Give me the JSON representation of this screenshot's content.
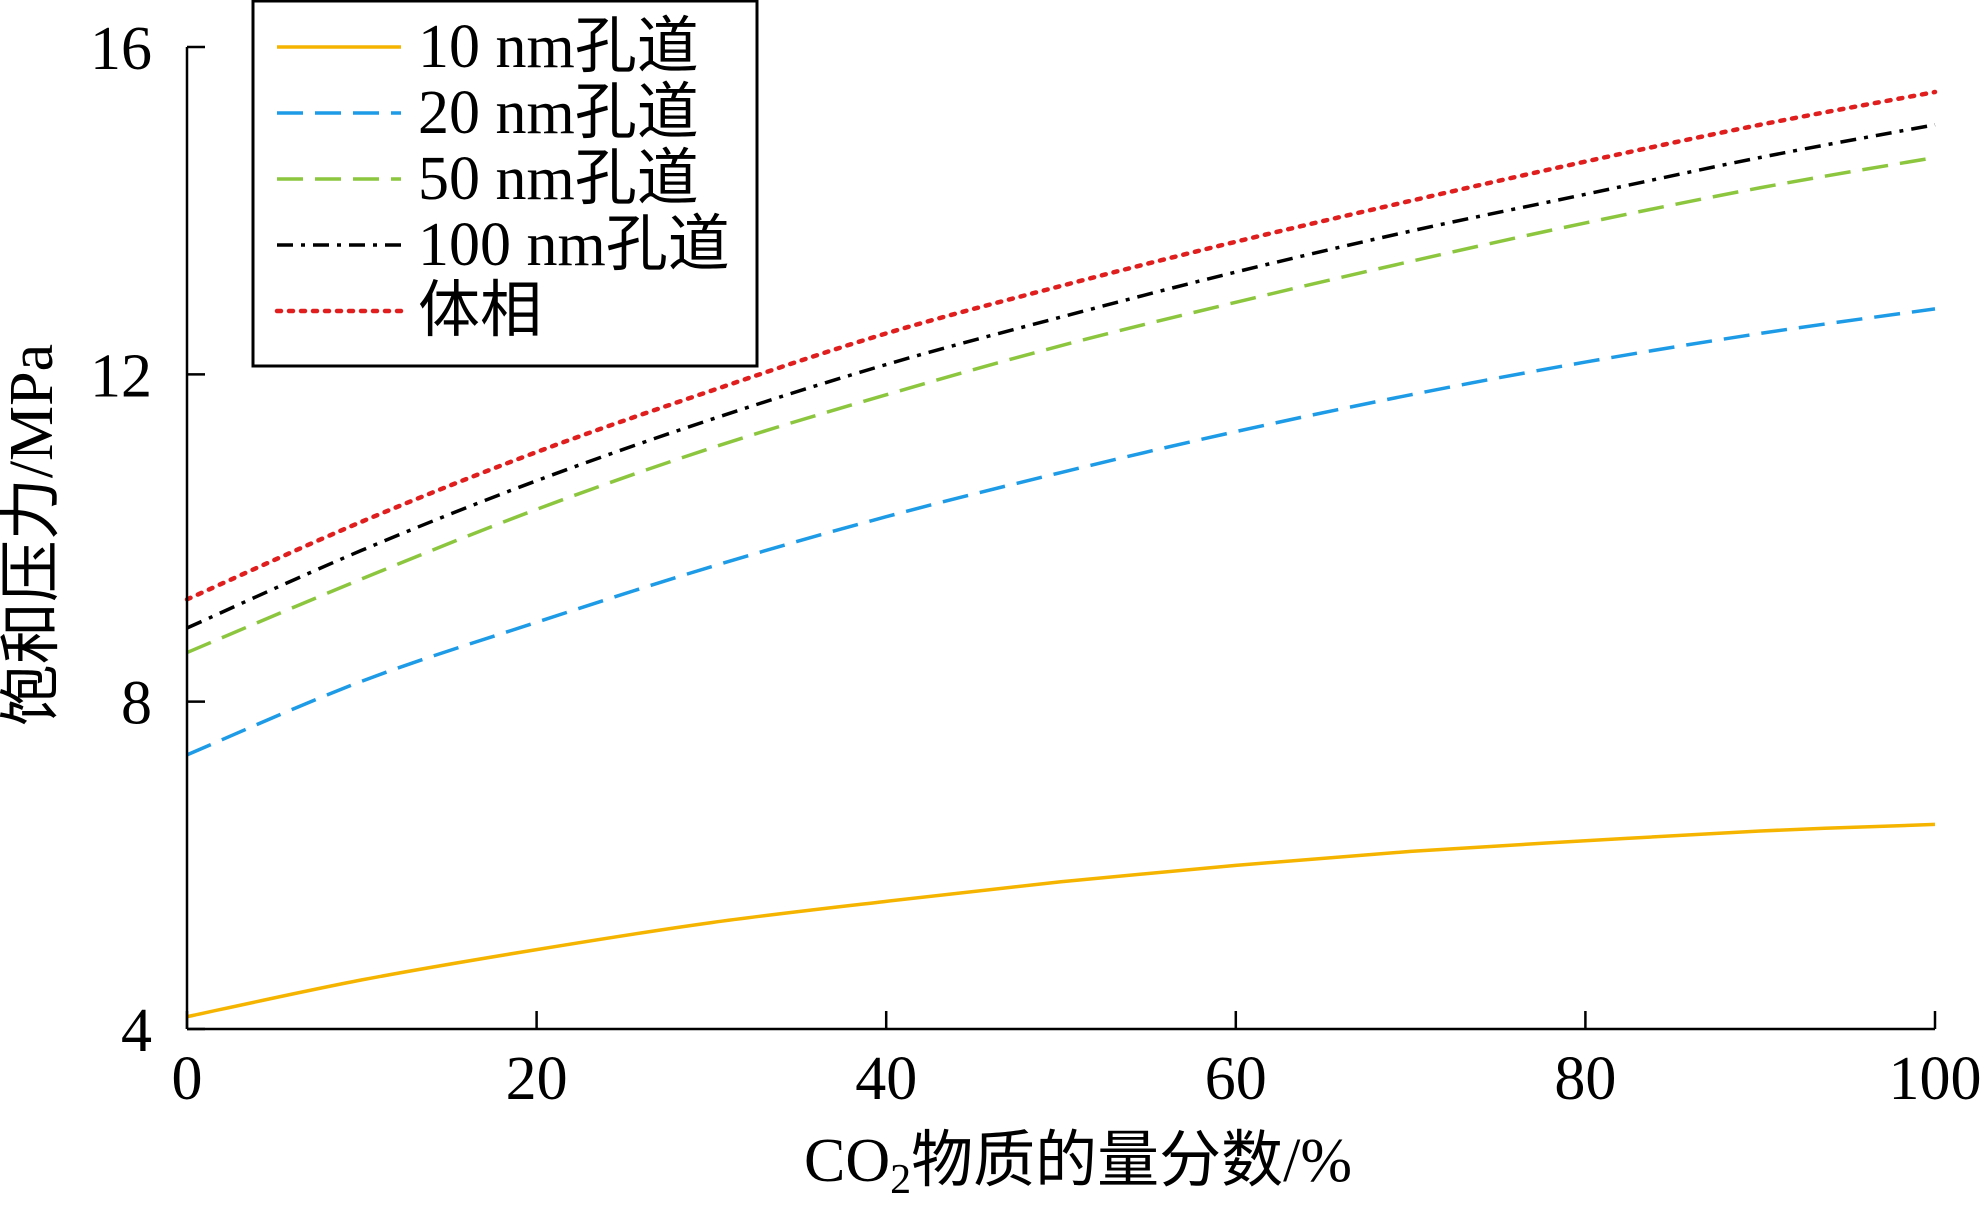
{
  "chart_data": {
    "type": "line",
    "xlabel_prefix": "CO",
    "xlabel_sub": "2",
    "xlabel_suffix": "物质的量分数/%",
    "ylabel": "饱和压力/MPa",
    "xlim": [
      0,
      100
    ],
    "ylim": [
      4,
      16
    ],
    "xticks": [
      0,
      20,
      40,
      60,
      80,
      100
    ],
    "yticks": [
      4,
      8,
      12,
      16
    ],
    "grid": false,
    "legend_position": "top-left",
    "x": [
      0,
      10,
      20,
      30,
      40,
      50,
      60,
      70,
      80,
      90,
      100
    ],
    "series": [
      {
        "name": "10 nm孔道",
        "color": "#F5B400",
        "dash": "solid",
        "values": [
          4.15,
          4.6,
          4.97,
          5.3,
          5.56,
          5.8,
          6.0,
          6.17,
          6.3,
          6.42,
          6.5
        ]
      },
      {
        "name": "20 nm孔道",
        "color": "#1E9BE6",
        "dash": "dash",
        "values": [
          7.35,
          8.25,
          8.97,
          9.65,
          10.26,
          10.8,
          11.3,
          11.75,
          12.15,
          12.5,
          12.8
        ]
      },
      {
        "name": "50 nm孔道",
        "color": "#8CC63E",
        "dash": "dash",
        "values": [
          8.6,
          9.5,
          10.35,
          11.1,
          11.75,
          12.35,
          12.88,
          13.38,
          13.85,
          14.28,
          14.65
        ]
      },
      {
        "name": "100 nm孔道",
        "color": "#000000",
        "dash": "dashdot",
        "values": [
          8.9,
          9.85,
          10.7,
          11.45,
          12.12,
          12.7,
          13.25,
          13.75,
          14.2,
          14.65,
          15.05
        ]
      },
      {
        "name": "体相",
        "color": "#E01E1E",
        "dash": "dot",
        "values": [
          9.25,
          10.2,
          11.05,
          11.8,
          12.5,
          13.08,
          13.62,
          14.12,
          14.6,
          15.05,
          15.45
        ]
      }
    ]
  }
}
